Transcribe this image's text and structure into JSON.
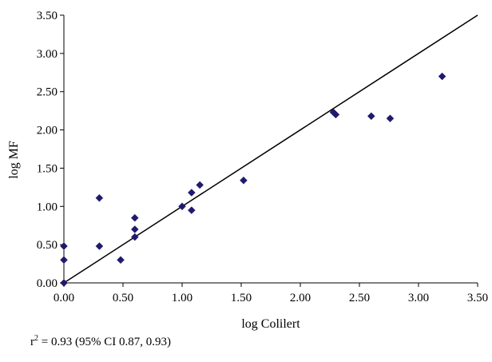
{
  "chart_data": {
    "type": "scatter",
    "xlabel": "log Colilert",
    "ylabel": "log MF",
    "xlim": [
      0,
      3.5
    ],
    "ylim": [
      0,
      3.5
    ],
    "xticks": [
      "0.00",
      "0.50",
      "1.00",
      "1.50",
      "2.00",
      "2.50",
      "3.00",
      "3.50"
    ],
    "yticks": [
      "0.00",
      "0.50",
      "1.00",
      "1.50",
      "2.00",
      "2.50",
      "3.00",
      "3.50"
    ],
    "grid": false,
    "marker_color": "#1f1a6e",
    "reference_line": {
      "type": "identity",
      "from": [
        0,
        0
      ],
      "to": [
        3.5,
        3.5
      ]
    },
    "points": [
      {
        "x": 0.0,
        "y": 0.0
      },
      {
        "x": 0.0,
        "y": 0.3
      },
      {
        "x": 0.0,
        "y": 0.48
      },
      {
        "x": 0.3,
        "y": 1.11
      },
      {
        "x": 0.3,
        "y": 0.48
      },
      {
        "x": 0.48,
        "y": 0.3
      },
      {
        "x": 0.6,
        "y": 0.85
      },
      {
        "x": 0.6,
        "y": 0.7
      },
      {
        "x": 0.6,
        "y": 0.6
      },
      {
        "x": 1.0,
        "y": 1.0
      },
      {
        "x": 1.08,
        "y": 1.18
      },
      {
        "x": 1.08,
        "y": 0.95
      },
      {
        "x": 1.15,
        "y": 1.28
      },
      {
        "x": 1.52,
        "y": 1.34
      },
      {
        "x": 2.28,
        "y": 2.23
      },
      {
        "x": 2.3,
        "y": 2.2
      },
      {
        "x": 2.6,
        "y": 2.18
      },
      {
        "x": 2.76,
        "y": 2.15
      },
      {
        "x": 3.2,
        "y": 2.7
      }
    ]
  },
  "footnote": {
    "r_symbol": "r",
    "r_exponent": "2",
    "text": " = 0.93 (95% CI 0.87, 0.93)"
  }
}
